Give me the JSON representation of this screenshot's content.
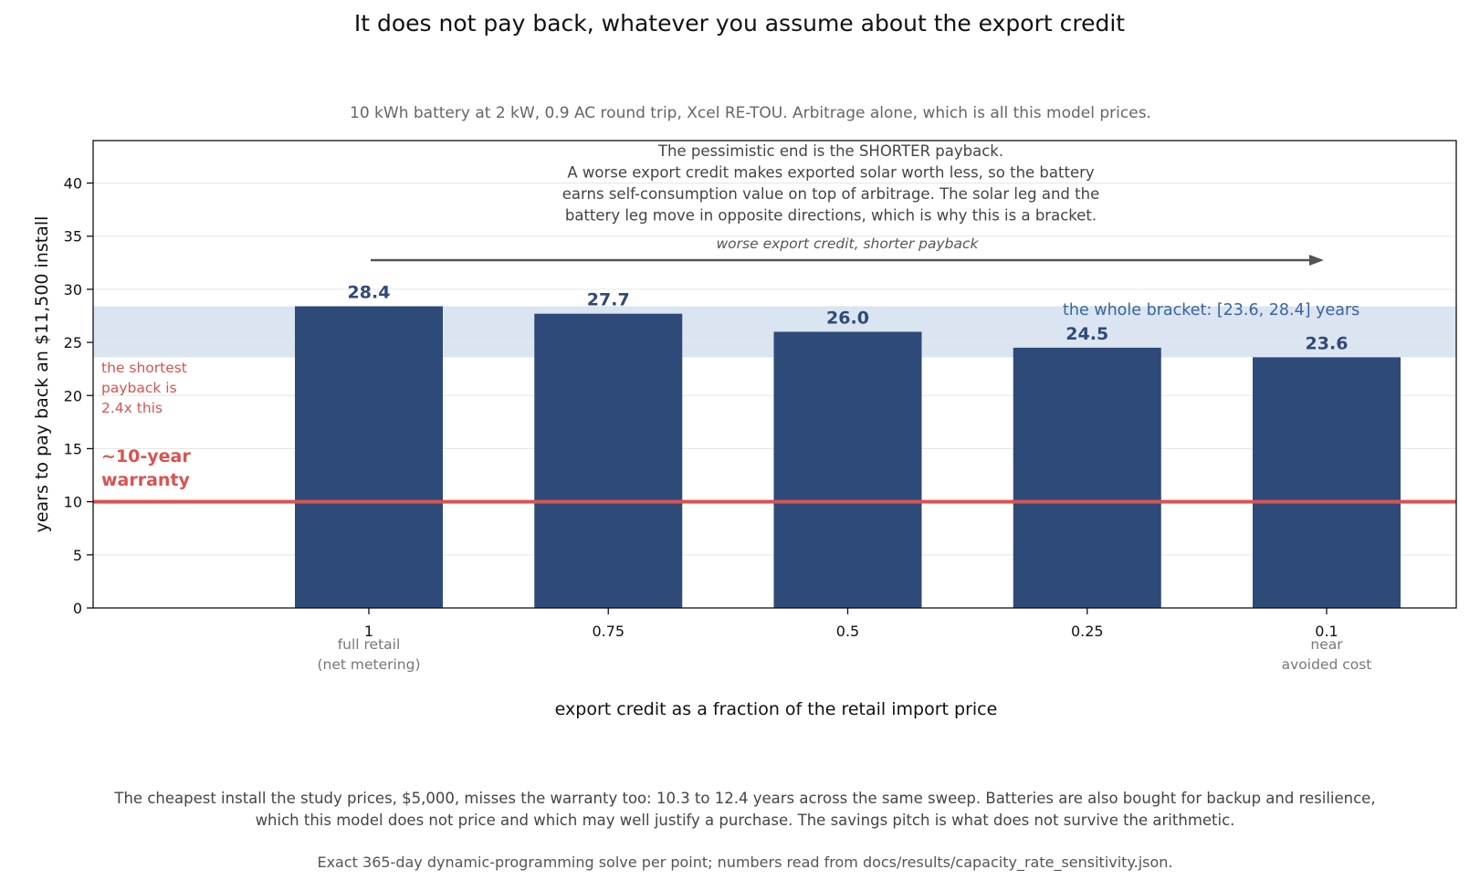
{
  "chart_data": {
    "type": "bar",
    "title": "It does not pay back, whatever you assume about the export credit",
    "subtitle": "10 kWh battery at 2 kW, 0.9 AC round trip, Xcel RE-TOU. Arbitrage alone, which is all this model prices.",
    "xlabel": "export credit as a fraction of the retail import price",
    "ylabel": "years to pay back an $11,500 install",
    "categories": [
      "1",
      "0.75",
      "0.5",
      "0.25",
      "0.1"
    ],
    "category_sublabels": [
      "full retail\n(net metering)",
      "",
      "",
      "",
      "near\navoided cost"
    ],
    "values": [
      28.4,
      27.7,
      26.0,
      24.5,
      23.6
    ],
    "value_labels": [
      "28.4",
      "27.7",
      "26.0",
      "24.5",
      "23.6"
    ],
    "ylim": [
      0,
      44
    ],
    "yticks": [
      0,
      5,
      10,
      15,
      20,
      25,
      30,
      35,
      40
    ],
    "bar_color": "#2e4a79",
    "grid": "horizontal",
    "bracket": {
      "low": 23.6,
      "high": 28.4,
      "label": "the whole bracket: [23.6, 28.4] years",
      "color": "#dbe5f1"
    },
    "warranty_line": {
      "value": 10,
      "label": "~10-year\nwarranty",
      "note": "the shortest\npayback is\n2.4x this",
      "color": "#d9534f"
    },
    "annotation": {
      "lines": [
        "The pessimistic end is the SHORTER payback.",
        "A worse export credit makes exported solar worth less, so the battery",
        "earns self-consumption value on top of arbitrage. The solar leg and the",
        "battery leg move in opposite directions, which is why this is a bracket."
      ],
      "arrow_label": "worse export credit, shorter payback"
    }
  },
  "footnote": {
    "lines": [
      "The cheapest install the study prices, $5,000, misses the warranty too: 10.3 to 12.4 years across the same sweep. Batteries are also bought for backup and resilience,",
      "which this model does not price and which may well justify a purchase. The savings pitch is what does not survive the arithmetic."
    ],
    "source": "Exact 365-day dynamic-programming solve per point; numbers read from docs/results/capacity_rate_sensitivity.json."
  }
}
